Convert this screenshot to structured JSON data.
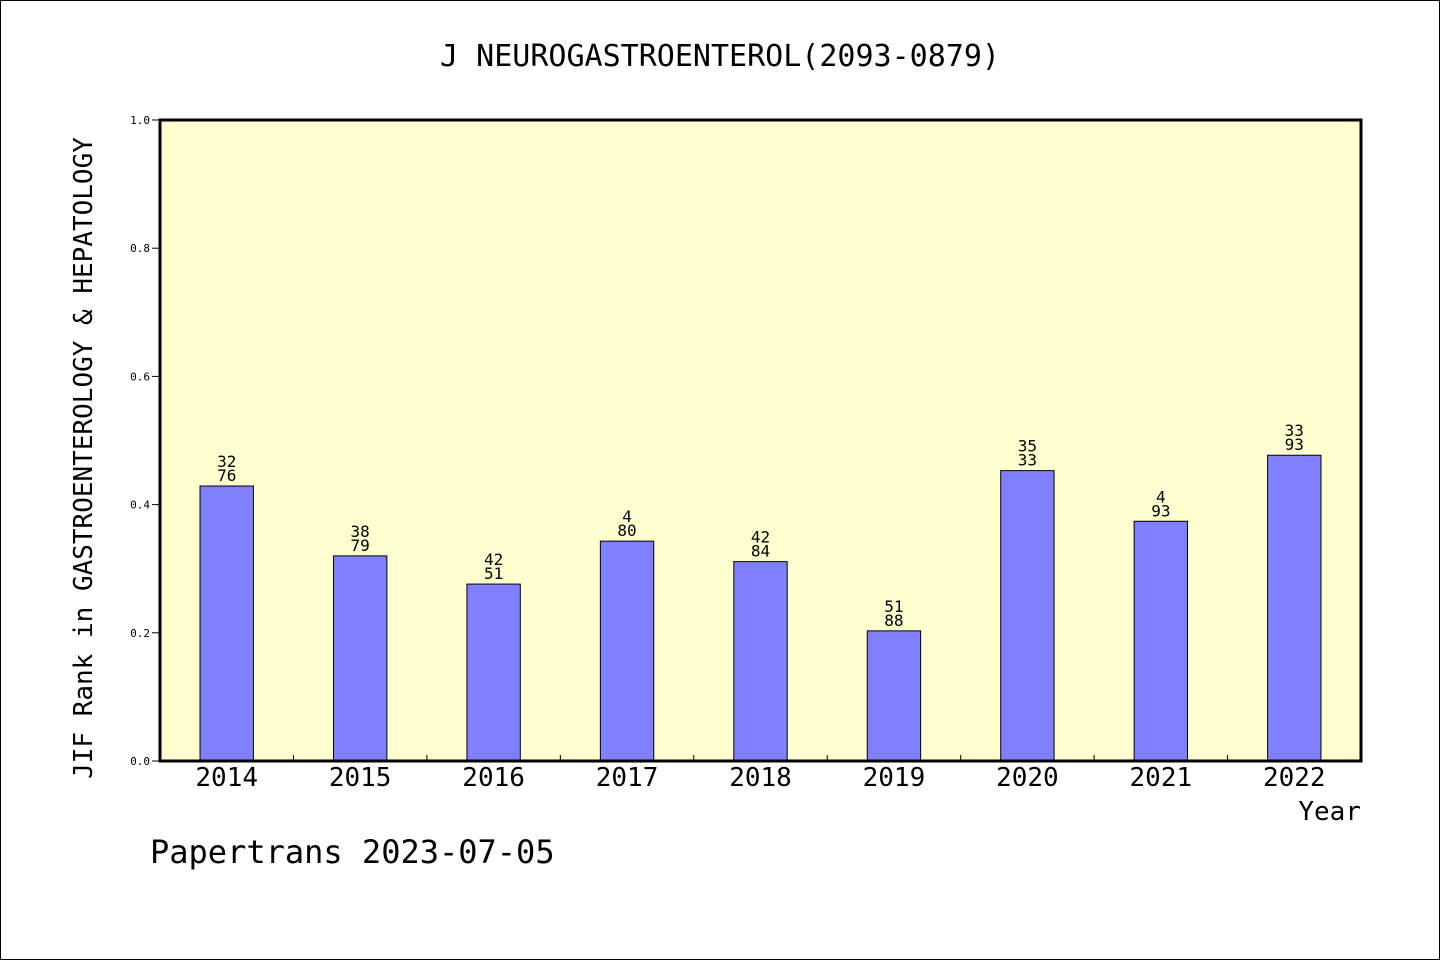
{
  "chart_data": {
    "type": "bar",
    "title": "J NEUROGASTROENTEROL(2093-0879)",
    "xlabel": "Year",
    "ylabel": "JIF Rank in GASTROENTEROLOGY & HEPATOLOGY",
    "ylim": [
      0.0,
      1.0
    ],
    "yticks": [
      "0.0",
      "0.2",
      "0.4",
      "0.6",
      "0.8",
      "1.0"
    ],
    "categories": [
      "2014",
      "2015",
      "2016",
      "2017",
      "2018",
      "2019",
      "2020",
      "2021",
      "2022"
    ],
    "values": [
      0.429,
      0.32,
      0.276,
      0.343,
      0.311,
      0.203,
      0.453,
      0.374,
      0.477
    ],
    "labels_top": [
      "32",
      "38",
      "42",
      "4",
      "42",
      "51",
      "35",
      "4",
      "33"
    ],
    "labels_bottom": [
      "76",
      "79",
      "51",
      "80",
      "84",
      "88",
      "33",
      "93",
      "93"
    ],
    "plot_background": "#ffffd0",
    "bar_color": "#8080ff",
    "grid": false,
    "legend": "none"
  },
  "footer": "Papertrans 2023-07-05"
}
